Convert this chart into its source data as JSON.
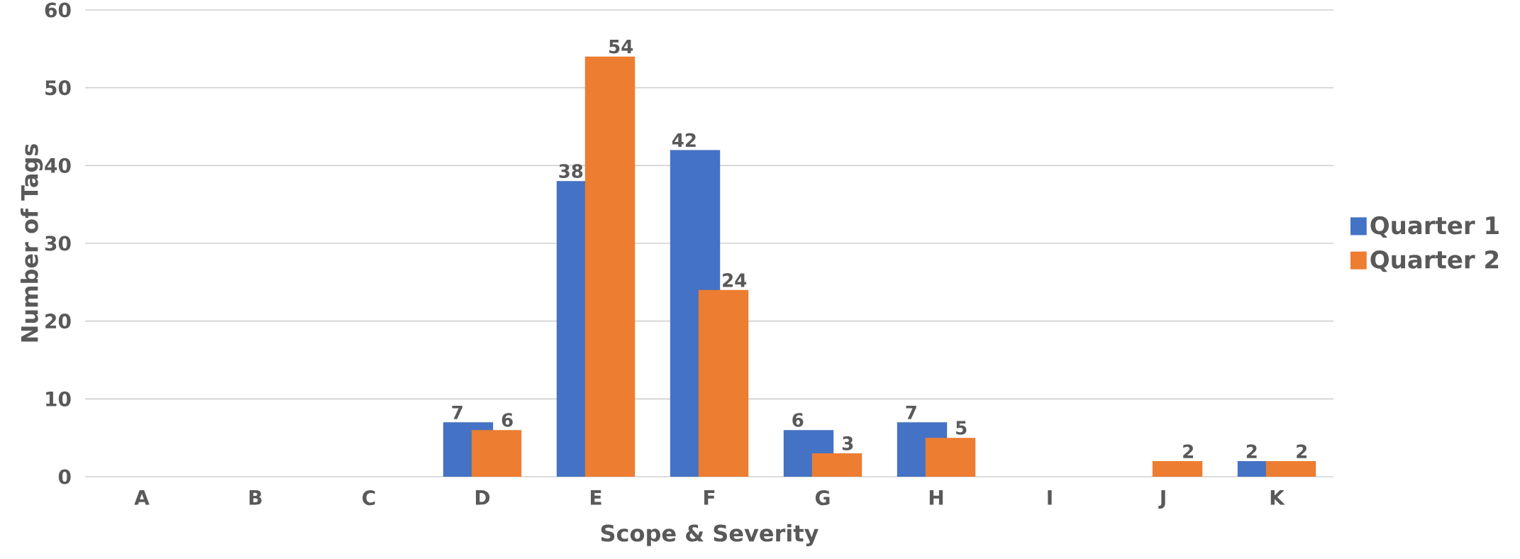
{
  "chart_data": {
    "type": "bar",
    "xlabel": "Scope & Severity",
    "ylabel": "Number of Tags",
    "categories": [
      "A",
      "B",
      "C",
      "D",
      "E",
      "F",
      "G",
      "H",
      "I",
      "J",
      "K"
    ],
    "series": [
      {
        "name": "Quarter 1",
        "color": "#4472c4",
        "values": [
          null,
          null,
          null,
          7,
          38,
          42,
          6,
          7,
          null,
          null,
          2
        ]
      },
      {
        "name": "Quarter 2",
        "color": "#ed7d31",
        "values": [
          null,
          null,
          null,
          6,
          54,
          24,
          3,
          5,
          null,
          2,
          2
        ]
      }
    ],
    "ylim": [
      0,
      60
    ],
    "yticks": [
      0,
      10,
      20,
      30,
      40,
      50,
      60
    ],
    "grid": "y",
    "legend": "right",
    "data_labels": true
  }
}
